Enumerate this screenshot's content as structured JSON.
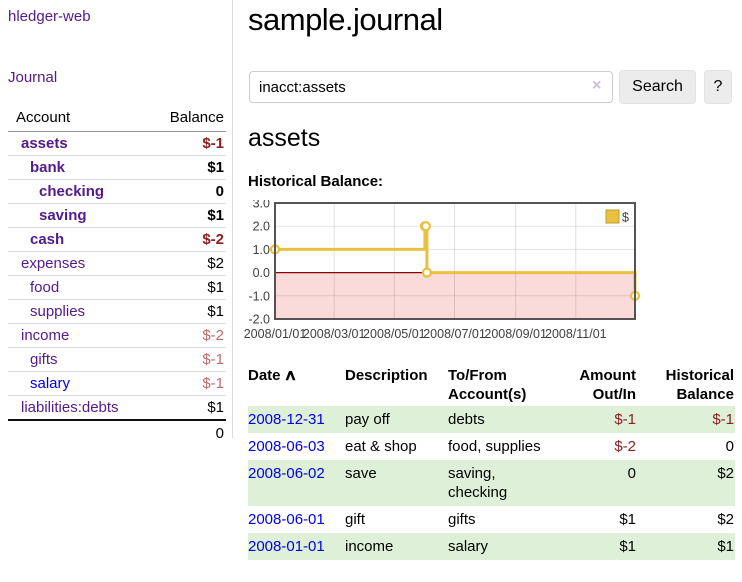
{
  "sidebar": {
    "brand": "hledger-web",
    "journal_label": "Journal",
    "accounts_table": {
      "headers": [
        "Account",
        "Balance"
      ],
      "rows": [
        {
          "name": "assets",
          "balance": "$-1",
          "depth": 0,
          "bold": true,
          "negative": "strong"
        },
        {
          "name": "bank",
          "balance": "$1",
          "depth": 1,
          "bold": true
        },
        {
          "name": "checking",
          "balance": "0",
          "depth": 2,
          "bold": true
        },
        {
          "name": "saving",
          "balance": "$1",
          "depth": 2,
          "bold": true
        },
        {
          "name": "cash",
          "balance": "$-2",
          "depth": 1,
          "bold": true,
          "negative": "strong"
        },
        {
          "name": "expenses",
          "balance": "$2",
          "depth": 0
        },
        {
          "name": "food",
          "balance": "$1",
          "depth": 1
        },
        {
          "name": "supplies",
          "balance": "$1",
          "depth": 1
        },
        {
          "name": "income",
          "balance": "$-2",
          "depth": 0,
          "negative": "soft"
        },
        {
          "name": "gifts",
          "balance": "$-1",
          "depth": 1,
          "negative": "soft"
        },
        {
          "name": "salary",
          "balance": "$-1",
          "depth": 1,
          "negative": "soft",
          "link_color": "blue"
        },
        {
          "name": "liabilities:debts",
          "balance": "$1",
          "depth": 0
        }
      ],
      "total": "0"
    }
  },
  "header": {
    "title": "sample.journal"
  },
  "search": {
    "value": "inacct:assets",
    "clear_icon": "×",
    "button": "Search",
    "help_button": "?"
  },
  "account_page": {
    "title": "assets",
    "chart_label": "Historical Balance:"
  },
  "chart_data": {
    "type": "line",
    "title": "Historical Balance:",
    "series": [
      {
        "name": "$",
        "color": "#e9c03f",
        "steps": true,
        "points": [
          {
            "date": "2008-01-01",
            "value": 1.0
          },
          {
            "date": "2008-06-01",
            "value": 2.0
          },
          {
            "date": "2008-06-02",
            "value": 2.0
          },
          {
            "date": "2008-06-03",
            "value": 0.0
          },
          {
            "date": "2008-12-31",
            "value": -1.0
          }
        ]
      }
    ],
    "x_ticks": [
      "2008/01/01",
      "2008/03/01",
      "2008/05/01",
      "2008/07/01",
      "2008/09/01",
      "2008/11/01"
    ],
    "y_ticks": [
      3.0,
      2.0,
      1.0,
      0.0,
      -1.0,
      -2.0
    ],
    "ylim": [
      -2,
      3
    ],
    "xlim_dates": [
      "2008-01-01",
      "2008-12-31"
    ],
    "grid": true,
    "legend": {
      "label": "$",
      "position": "top-right"
    }
  },
  "register": {
    "sort_indicator": "∧",
    "headers": [
      "Date",
      "Description",
      "To/From Account(s)",
      "Amount Out/In",
      "Historical Balance"
    ],
    "rows": [
      {
        "date": "2008-12-31",
        "description": "pay off",
        "accounts": "debts",
        "amount": "$-1",
        "amount_negative": true,
        "balance": "$-1",
        "balance_negative": true
      },
      {
        "date": "2008-06-03",
        "description": "eat & shop",
        "accounts": "food, supplies",
        "amount": "$-2",
        "amount_negative": true,
        "balance": "0",
        "balance_negative": false
      },
      {
        "date": "2008-06-02",
        "description": "save",
        "accounts": "saving, checking",
        "amount": "0",
        "amount_negative": false,
        "balance": "$2",
        "balance_negative": false
      },
      {
        "date": "2008-06-01",
        "description": "gift",
        "accounts": "gifts",
        "amount": "$1",
        "amount_negative": false,
        "balance": "$2",
        "balance_negative": false
      },
      {
        "date": "2008-01-01",
        "description": "income",
        "accounts": "salary",
        "amount": "$1",
        "amount_negative": false,
        "balance": "$1",
        "balance_negative": false
      }
    ]
  },
  "colors": {
    "link_purple": "#551a8b",
    "link_blue": "#0000e8",
    "negative_strong": "#8b1e20",
    "negative_soft": "#c0696b",
    "row_green": "#dff0d8",
    "chart_line_gold": "#e9c03f",
    "chart_negative_region": "#fbdada",
    "chart_zero_line": "#8b0000",
    "chart_border": "#545454"
  }
}
